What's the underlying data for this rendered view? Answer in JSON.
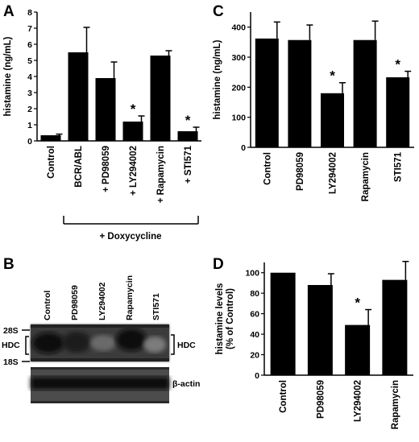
{
  "chart_data": [
    {
      "panel": "A",
      "type": "bar",
      "ylabel": "histamine (ng/mL)",
      "ylim": [
        0,
        8
      ],
      "yticks": [
        0,
        1,
        2,
        3,
        4,
        5,
        6,
        7,
        8
      ],
      "categories": [
        "Control",
        "BCR/ABL",
        "+ PD98059",
        "+ LY294002",
        "+ Rapamycin",
        "+ STI571"
      ],
      "values": [
        0.35,
        5.5,
        3.9,
        1.2,
        5.3,
        0.6
      ],
      "errors": [
        0.07,
        1.55,
        1.0,
        0.35,
        0.3,
        0.25
      ],
      "significant": [
        false,
        false,
        false,
        true,
        false,
        true
      ],
      "star": "*",
      "group_label": "+ Doxycycline"
    },
    {
      "panel": "C",
      "type": "bar",
      "ylabel": "histamine (ng/mL)",
      "ylim": [
        0,
        450
      ],
      "yticks": [
        0,
        100,
        200,
        300,
        400
      ],
      "categories": [
        "Control",
        "PD98059",
        "LY294002",
        "Rapamycin",
        "STI571"
      ],
      "values": [
        362,
        357,
        180,
        357,
        233
      ],
      "errors": [
        55,
        50,
        35,
        63,
        20
      ],
      "significant": [
        false,
        false,
        true,
        false,
        true
      ],
      "star": "*"
    },
    {
      "panel": "D",
      "type": "bar",
      "ylabel_lines": [
        "histamine levels",
        "(% of Control)"
      ],
      "ylim": [
        0,
        110
      ],
      "yticks": [
        0,
        20,
        40,
        60,
        80,
        100
      ],
      "categories": [
        "Control",
        "PD98059",
        "LY294002",
        "Rapamycin"
      ],
      "values": [
        100,
        88,
        49,
        93
      ],
      "errors": [
        0,
        11,
        15,
        18
      ],
      "significant": [
        false,
        false,
        true,
        false
      ],
      "star": "*"
    }
  ],
  "blot": {
    "panel": "B",
    "lanes": [
      "Control",
      "PD98059",
      "LY294002",
      "Rapamycin",
      "STI571"
    ],
    "markers": {
      "top": "28S",
      "mid": "HDC",
      "bottom": "18S"
    },
    "band_label": "HDC",
    "loading_label": "β-actin"
  }
}
